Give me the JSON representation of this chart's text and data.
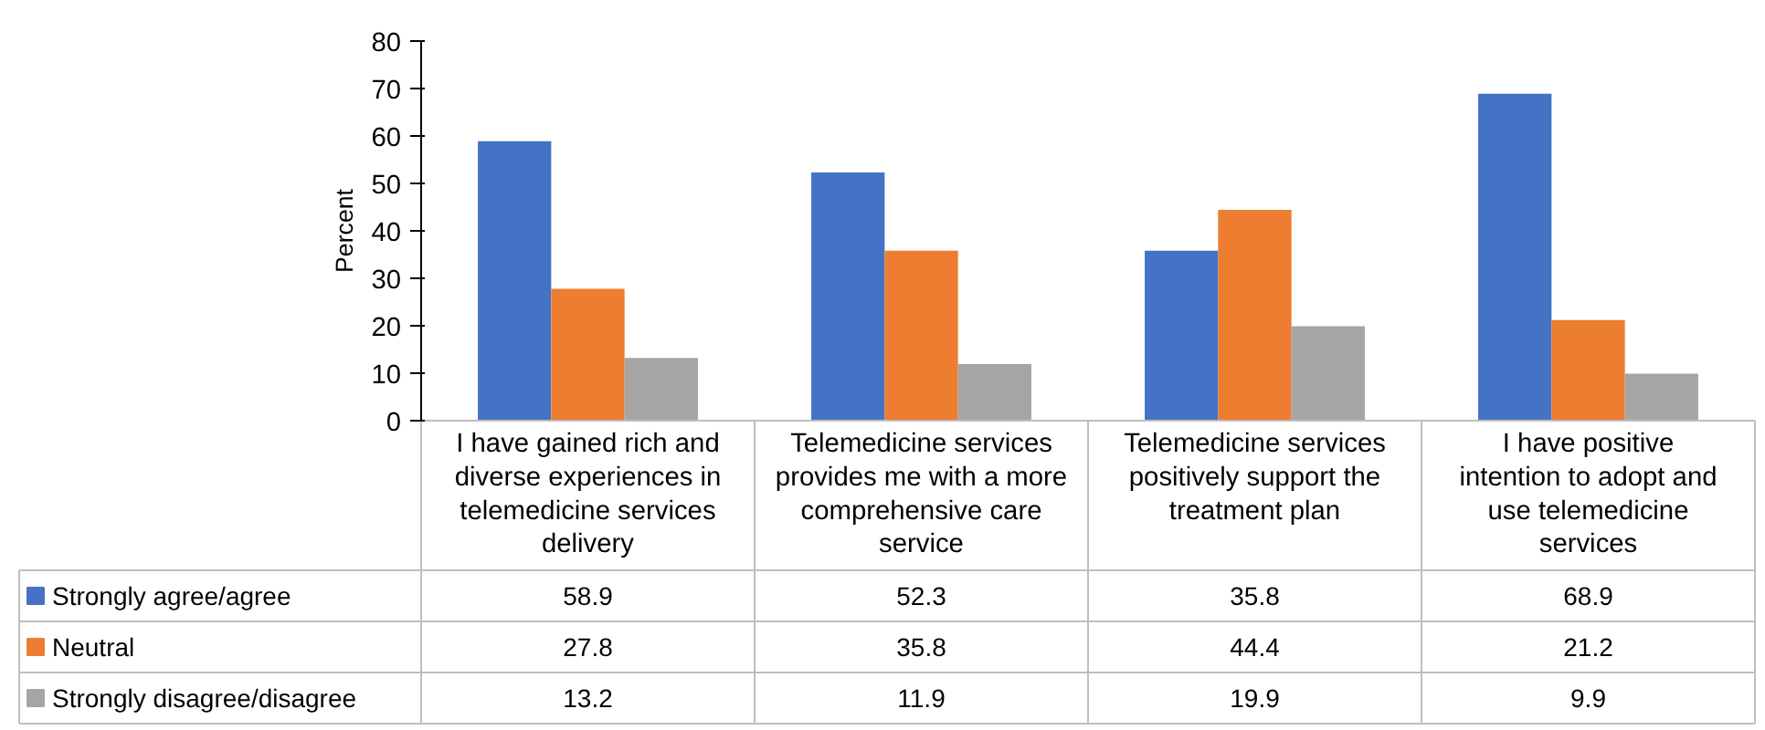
{
  "chart_data": {
    "type": "bar",
    "ylabel": "Percent",
    "categories": [
      "I have gained rich and diverse experiences in telemedicine services delivery",
      "Telemedicine services provides me with a more comprehensive care service",
      "Telemedicine services positively support the treatment plan",
      "I have positive intention to adopt and use telemedicine services"
    ],
    "series": [
      {
        "name": "Strongly agree/agree",
        "color": "#4472c4",
        "values": [
          58.9,
          52.3,
          35.8,
          68.9
        ]
      },
      {
        "name": "Neutral",
        "color": "#ed7d31",
        "values": [
          27.8,
          35.8,
          44.4,
          21.2
        ]
      },
      {
        "name": "Strongly disagree/disagree",
        "color": "#a5a5a5",
        "values": [
          13.2,
          11.9,
          19.9,
          9.9
        ]
      }
    ],
    "ylim": [
      0,
      80
    ],
    "yticks": [
      0,
      10,
      20,
      30,
      40,
      50,
      60,
      70,
      80
    ],
    "grid": false,
    "legend": "bottom",
    "data_labels": true
  }
}
